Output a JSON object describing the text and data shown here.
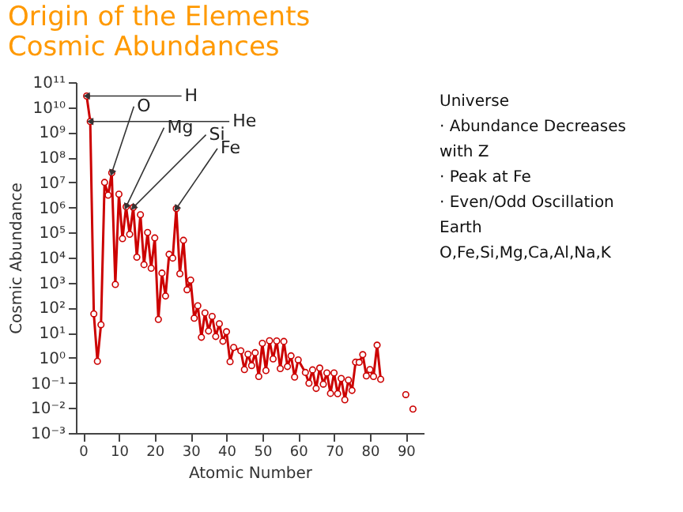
{
  "chart_data": {
    "type": "line",
    "title": "Origin of the Elements",
    "subtitle": "Cosmic Abundances",
    "xlabel": "Atomic Number",
    "ylabel": "Cosmic Abundance",
    "series": [
      {
        "type": "line",
        "color": "#cc0000",
        "x": [
          1,
          2,
          3,
          4,
          5,
          6,
          7,
          8,
          9,
          10,
          11,
          12,
          13,
          14,
          15,
          16,
          17,
          18,
          19,
          20,
          21,
          22,
          23,
          24,
          25,
          26,
          27,
          28,
          29,
          30,
          31,
          32,
          33,
          34,
          35,
          36,
          37,
          38,
          39,
          40,
          41,
          42,
          44,
          45,
          46,
          47,
          48,
          49,
          50,
          51,
          52,
          53,
          54,
          55,
          56,
          57,
          58,
          59,
          60,
          62,
          63,
          64,
          65,
          66,
          67,
          68,
          69,
          70,
          71,
          72,
          73,
          74,
          75,
          76,
          77,
          78,
          79,
          80,
          81,
          82,
          83
        ],
        "values": [
          28000000000.0,
          2700000000.0,
          57,
          0.73,
          21,
          10000000.0,
          3100000.0,
          24000000.0,
          843,
          3400000.0,
          57000.0,
          1070000.0,
          85000.0,
          1000000.0,
          10400.0,
          515000.0,
          5240,
          100000.0,
          3770,
          61000.0,
          34,
          2400,
          293,
          13500.0,
          9550,
          900000.0,
          2250,
          49000.0,
          522,
          1260,
          38,
          120,
          6.6,
          62,
          11.8,
          45,
          7.1,
          23,
          4.6,
          11,
          0.7,
          2.6,
          1.9,
          0.34,
          1.4,
          0.49,
          1.6,
          0.18,
          3.8,
          0.31,
          4.8,
          0.9,
          4.7,
          0.37,
          4.5,
          0.45,
          1.2,
          0.17,
          0.83,
          0.26,
          0.097,
          0.33,
          0.06,
          0.39,
          0.089,
          0.25,
          0.038,
          0.25,
          0.037,
          0.15,
          0.021,
          0.13,
          0.05,
          0.67,
          0.66,
          1.34,
          0.19,
          0.34,
          0.18,
          3.2,
          0.14
        ]
      },
      {
        "type": "scatter",
        "color": "#cc0000",
        "x": [
          90,
          92
        ],
        "values": [
          0.034,
          0.009
        ]
      }
    ],
    "xlim": [
      -2,
      95
    ],
    "xticks": [
      0,
      10,
      20,
      30,
      40,
      50,
      60,
      70,
      80,
      90
    ],
    "ylim": [
      0.001,
      100000000000.0
    ],
    "log": true,
    "yticks": [
      {
        "value": 0.001,
        "label": "10⁻³"
      },
      {
        "value": 0.01,
        "label": "10⁻²"
      },
      {
        "value": 0.1,
        "label": "10⁻¹"
      },
      {
        "value": 1,
        "label": "10⁰"
      },
      {
        "value": 10,
        "label": "10¹"
      },
      {
        "value": 100,
        "label": "10²"
      },
      {
        "value": 1000,
        "label": "10³"
      },
      {
        "value": 10000.0,
        "label": "10⁴"
      },
      {
        "value": 100000.0,
        "label": "10⁵"
      },
      {
        "value": 1000000.0,
        "label": "10⁶"
      },
      {
        "value": 10000000.0,
        "label": "10⁷"
      },
      {
        "value": 100000000.0,
        "label": "10⁸"
      },
      {
        "value": 1000000000.0,
        "label": "10⁹"
      },
      {
        "value": 10000000000.0,
        "label": "10¹⁰"
      },
      {
        "value": 100000000000.0,
        "label": "10¹¹"
      }
    ],
    "marker": "circle",
    "annotations": [
      {
        "text": "H",
        "x": 1,
        "y": 28000000000.0
      },
      {
        "text": "He",
        "x": 2,
        "y": 2700000000.0
      },
      {
        "text": "O",
        "x": 8,
        "y": 24000000.0
      },
      {
        "text": "Mg",
        "x": 12,
        "y": 1070000.0
      },
      {
        "text": "Si",
        "x": 14,
        "y": 1000000.0
      },
      {
        "text": "Fe",
        "x": 26,
        "y": 900000.0
      },
      "Universe",
      "· Abundance Decreases with Z",
      "· Peak at Fe",
      "· Even/Odd Oscillation",
      "Earth",
      "O,Fe,Si,Mg,Ca,Al,Na,K"
    ]
  }
}
